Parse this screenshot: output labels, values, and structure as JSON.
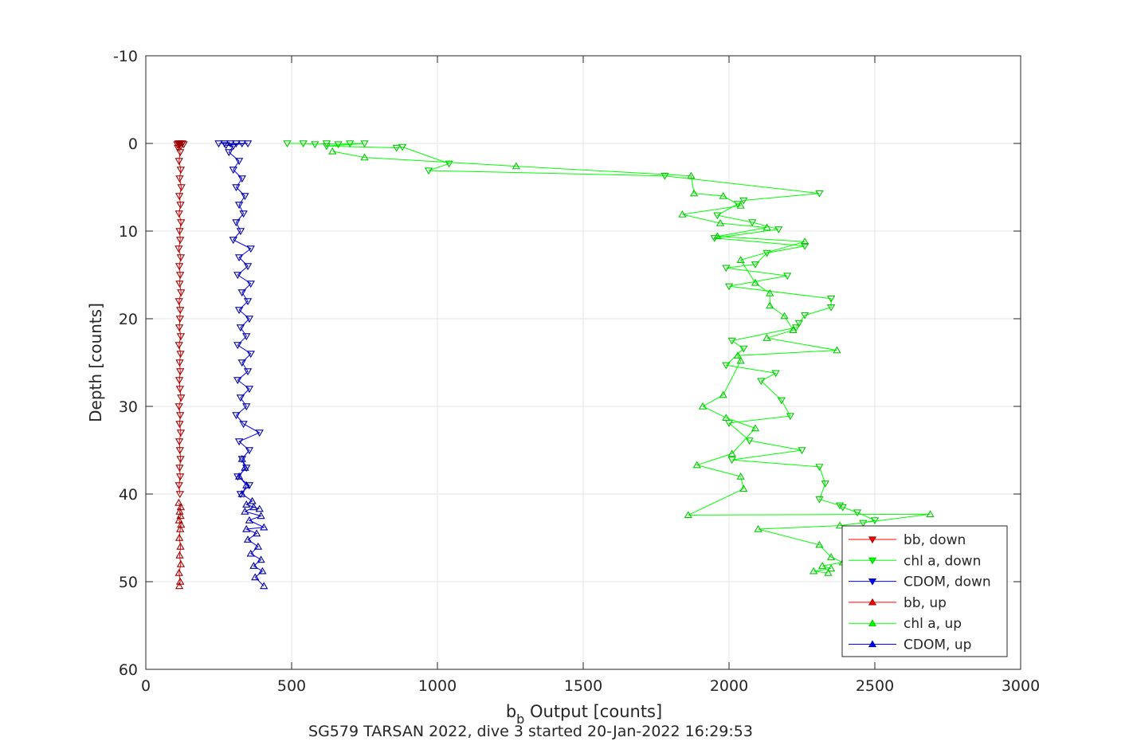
{
  "chart_data": {
    "type": "line",
    "title": "",
    "xlabel_main": "b",
    "xlabel_sub": "b",
    "xlabel_rest": " Output [counts]",
    "ylabel": "Depth [counts]",
    "caption": "SG579 TARSAN 2022, dive 3 started 20-Jan-2022 16:29:53",
    "xlim": [
      0,
      3000
    ],
    "ylim": [
      -10,
      60
    ],
    "y_reversed": true,
    "grid": true,
    "legend_position": "bottom-right",
    "x_ticks": [
      0,
      500,
      1000,
      1500,
      2000,
      2500,
      3000
    ],
    "y_ticks": [
      -10,
      0,
      10,
      20,
      30,
      40,
      50,
      60
    ],
    "x_tick_labels": [
      "0",
      "500",
      "1000",
      "1500",
      "2000",
      "2500",
      "3000"
    ],
    "y_tick_labels": [
      "-10",
      "0",
      "10",
      "20",
      "30",
      "40",
      "50",
      "60"
    ],
    "colors": {
      "bb": "#ff0000",
      "chl": "#00ff00",
      "cdom": "#0000ff",
      "chl_dark": "#00b400"
    },
    "series": [
      {
        "name": "bb, down",
        "color": "#ff0000",
        "marker": "triangle-down",
        "points": [
          [
            112,
            0
          ],
          [
            118,
            0
          ],
          [
            125,
            0
          ],
          [
            108,
            0.1
          ],
          [
            130,
            0.1
          ],
          [
            115,
            0.2
          ],
          [
            120,
            0.3
          ],
          [
            110,
            0.5
          ],
          [
            118,
            1
          ],
          [
            114,
            2
          ],
          [
            120,
            3
          ],
          [
            116,
            4
          ],
          [
            122,
            5
          ],
          [
            115,
            6
          ],
          [
            119,
            7
          ],
          [
            114,
            8
          ],
          [
            121,
            9
          ],
          [
            116,
            10
          ],
          [
            118,
            11
          ],
          [
            113,
            12
          ],
          [
            120,
            13
          ],
          [
            115,
            14
          ],
          [
            118,
            15
          ],
          [
            116,
            16
          ],
          [
            121,
            17
          ],
          [
            114,
            18
          ],
          [
            118,
            19
          ],
          [
            117,
            20
          ],
          [
            115,
            21
          ],
          [
            120,
            22
          ],
          [
            114,
            23
          ],
          [
            119,
            24
          ],
          [
            116,
            25
          ],
          [
            118,
            26
          ],
          [
            115,
            27
          ],
          [
            117,
            28
          ],
          [
            121,
            29
          ],
          [
            114,
            30
          ],
          [
            118,
            31
          ],
          [
            116,
            32
          ],
          [
            120,
            33
          ],
          [
            115,
            34
          ],
          [
            117,
            35
          ],
          [
            119,
            36
          ],
          [
            116,
            37
          ],
          [
            118,
            38
          ],
          [
            114,
            39
          ],
          [
            117,
            40
          ]
        ]
      },
      {
        "name": "chl a, down",
        "color": "#00ff00",
        "marker": "triangle-down",
        "points": [
          [
            485,
            0
          ],
          [
            540,
            0
          ],
          [
            580,
            0.1
          ],
          [
            620,
            0
          ],
          [
            660,
            0.1
          ],
          [
            700,
            0
          ],
          [
            750,
            0
          ],
          [
            620,
            0.3
          ],
          [
            860,
            0.5
          ],
          [
            880,
            0.4
          ],
          [
            1040,
            2.3
          ],
          [
            970,
            3.1
          ],
          [
            1780,
            3.7
          ],
          [
            2310,
            5.7
          ],
          [
            2050,
            6.5
          ],
          [
            2030,
            6.9
          ],
          [
            1960,
            8.2
          ],
          [
            2080,
            9.0
          ],
          [
            2170,
            9.8
          ],
          [
            1950,
            10.8
          ],
          [
            2260,
            11.7
          ],
          [
            2130,
            12.5
          ],
          [
            2090,
            13.8
          ],
          [
            1990,
            14.2
          ],
          [
            2200,
            15.1
          ],
          [
            2000,
            16.3
          ],
          [
            2350,
            17.7
          ],
          [
            2350,
            18.7
          ],
          [
            2260,
            19.6
          ],
          [
            2240,
            20.5
          ],
          [
            2230,
            21.0
          ],
          [
            2010,
            22.5
          ],
          [
            2050,
            23.4
          ],
          [
            1990,
            25.3
          ],
          [
            2160,
            26.2
          ],
          [
            2110,
            27.1
          ],
          [
            2180,
            29.3
          ],
          [
            2210,
            31.1
          ],
          [
            2000,
            31.9
          ],
          [
            2070,
            33.9
          ],
          [
            2250,
            35.0
          ],
          [
            2010,
            36.1
          ],
          [
            2310,
            36.9
          ],
          [
            2330,
            38.8
          ],
          [
            2310,
            40.6
          ],
          [
            2380,
            41.3
          ],
          [
            2390,
            41.5
          ],
          [
            2440,
            42.1
          ],
          [
            2500,
            43.0
          ],
          [
            2460,
            43.3
          ]
        ]
      },
      {
        "name": "CDOM, down",
        "color": "#0000ff",
        "marker": "triangle-down",
        "points": [
          [
            250,
            0
          ],
          [
            270,
            0
          ],
          [
            290,
            0
          ],
          [
            310,
            0
          ],
          [
            330,
            0
          ],
          [
            350,
            0
          ],
          [
            275,
            0.2
          ],
          [
            300,
            0.3
          ],
          [
            285,
            1
          ],
          [
            320,
            2
          ],
          [
            300,
            3
          ],
          [
            330,
            4
          ],
          [
            310,
            5
          ],
          [
            340,
            6
          ],
          [
            320,
            7
          ],
          [
            335,
            8
          ],
          [
            310,
            9
          ],
          [
            325,
            10
          ],
          [
            300,
            11
          ],
          [
            360,
            12
          ],
          [
            320,
            13
          ],
          [
            350,
            14
          ],
          [
            315,
            15
          ],
          [
            360,
            16
          ],
          [
            330,
            17
          ],
          [
            350,
            18
          ],
          [
            320,
            19
          ],
          [
            355,
            20
          ],
          [
            325,
            21
          ],
          [
            345,
            22
          ],
          [
            315,
            23
          ],
          [
            360,
            24
          ],
          [
            330,
            25
          ],
          [
            350,
            26
          ],
          [
            315,
            27
          ],
          [
            355,
            28
          ],
          [
            325,
            29
          ],
          [
            345,
            30
          ],
          [
            310,
            31
          ],
          [
            335,
            32
          ],
          [
            390,
            33
          ],
          [
            320,
            34
          ],
          [
            355,
            35
          ],
          [
            330,
            36
          ],
          [
            345,
            37
          ],
          [
            315,
            38
          ],
          [
            355,
            39
          ],
          [
            325,
            40
          ]
        ]
      },
      {
        "name": "bb, up",
        "color": "#ff0000",
        "marker": "triangle-up",
        "points": [
          [
            115,
            50.5
          ],
          [
            118,
            50
          ],
          [
            114,
            49
          ],
          [
            120,
            48
          ],
          [
            116,
            47
          ],
          [
            119,
            46
          ],
          [
            115,
            45
          ],
          [
            118,
            44
          ],
          [
            121,
            43.5
          ],
          [
            114,
            43
          ],
          [
            119,
            42.5
          ],
          [
            116,
            42
          ],
          [
            120,
            41.5
          ],
          [
            113,
            41
          ]
        ]
      },
      {
        "name": "chl a, up",
        "color": "#00ff00",
        "marker": "triangle-up",
        "points": [
          [
            2340,
            49.0
          ],
          [
            2290,
            48.8
          ],
          [
            2350,
            48.5
          ],
          [
            2320,
            48.2
          ],
          [
            2390,
            47.8
          ],
          [
            2350,
            47.2
          ],
          [
            2310,
            45.8
          ],
          [
            2100,
            44.0
          ],
          [
            2380,
            43.6
          ],
          [
            2690,
            42.3
          ],
          [
            1860,
            42.4
          ],
          [
            2050,
            39.4
          ],
          [
            2040,
            38.0
          ],
          [
            1890,
            36.7
          ],
          [
            2010,
            35.4
          ],
          [
            2090,
            32.5
          ],
          [
            1990,
            31.3
          ],
          [
            1910,
            30.0
          ],
          [
            1980,
            28.7
          ],
          [
            2040,
            24.8
          ],
          [
            2030,
            24.2
          ],
          [
            2370,
            23.6
          ],
          [
            2130,
            22.2
          ],
          [
            2220,
            21.3
          ],
          [
            2190,
            19.7
          ],
          [
            2140,
            18.5
          ],
          [
            2140,
            17.1
          ],
          [
            2090,
            15.9
          ],
          [
            2040,
            13.3
          ],
          [
            2260,
            11.2
          ],
          [
            1960,
            10.6
          ],
          [
            2130,
            9.6
          ],
          [
            1970,
            9.1
          ],
          [
            1840,
            8.1
          ],
          [
            2040,
            7.1
          ],
          [
            1980,
            6.0
          ],
          [
            1880,
            5.7
          ],
          [
            1870,
            3.7
          ],
          [
            1270,
            2.6
          ],
          [
            750,
            1.6
          ],
          [
            640,
            0.9
          ]
        ]
      },
      {
        "name": "CDOM, up",
        "color": "#0000ff",
        "marker": "triangle-up",
        "points": [
          [
            405,
            50.5
          ],
          [
            375,
            49.5
          ],
          [
            400,
            48.8
          ],
          [
            370,
            48.2
          ],
          [
            395,
            47.5
          ],
          [
            360,
            46.8
          ],
          [
            385,
            46
          ],
          [
            350,
            45.2
          ],
          [
            380,
            44.5
          ],
          [
            345,
            44
          ],
          [
            405,
            43.8
          ],
          [
            355,
            43
          ],
          [
            395,
            42.5
          ],
          [
            340,
            42
          ],
          [
            370,
            41.5
          ],
          [
            390,
            41.7
          ],
          [
            345,
            41.2
          ],
          [
            365,
            40.8
          ],
          [
            330,
            40
          ],
          [
            345,
            39
          ],
          [
            320,
            38
          ],
          [
            340,
            37
          ],
          [
            330,
            36
          ]
        ]
      }
    ]
  }
}
